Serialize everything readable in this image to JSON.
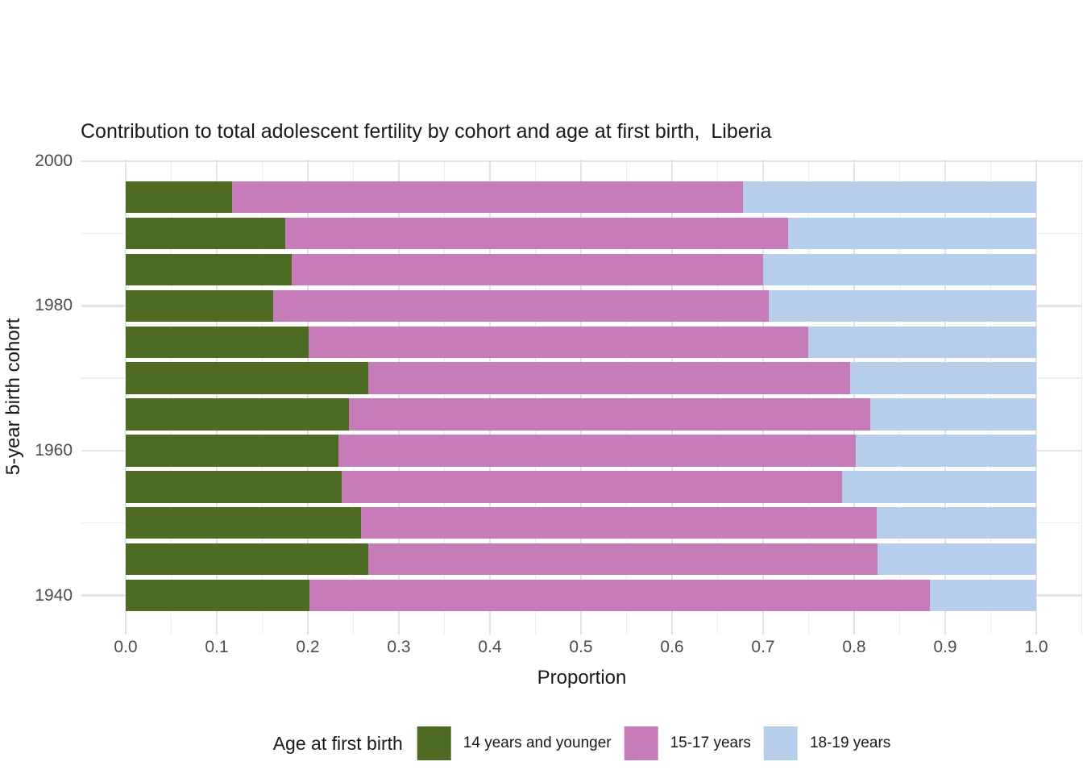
{
  "chart_data": {
    "type": "bar",
    "orientation": "horizontal-stacked",
    "title": "Contribution to total adolescent fertility by cohort and age at first birth,  Liberia",
    "xlabel": "Proportion",
    "ylabel": "5-year birth cohort",
    "xlim": [
      0.0,
      1.0
    ],
    "grid": true,
    "x_ticks": [
      {
        "value": 0.0,
        "label": "0.0"
      },
      {
        "value": 0.1,
        "label": "0.1"
      },
      {
        "value": 0.2,
        "label": "0.2"
      },
      {
        "value": 0.3,
        "label": "0.3"
      },
      {
        "value": 0.4,
        "label": "0.4"
      },
      {
        "value": 0.5,
        "label": "0.5"
      },
      {
        "value": 0.6,
        "label": "0.6"
      },
      {
        "value": 0.7,
        "label": "0.7"
      },
      {
        "value": 0.8,
        "label": "0.8"
      },
      {
        "value": 0.9,
        "label": "0.9"
      },
      {
        "value": 1.0,
        "label": "1.0"
      }
    ],
    "y_ticks": [
      {
        "value": 1940,
        "label": "1940"
      },
      {
        "value": 1960,
        "label": "1960"
      },
      {
        "value": 1980,
        "label": "1980"
      },
      {
        "value": 2000,
        "label": "2000"
      }
    ],
    "y_minor_ticks": [
      1950,
      1970,
      1990
    ],
    "categories": [
      1995,
      1990,
      1985,
      1980,
      1975,
      1970,
      1965,
      1960,
      1955,
      1950,
      1945,
      1940
    ],
    "series": [
      {
        "name": "14 years and younger",
        "color": "#4d6b23",
        "values": [
          0.117,
          0.175,
          0.182,
          0.162,
          0.201,
          0.266,
          0.245,
          0.234,
          0.237,
          0.258,
          0.266,
          0.202
        ]
      },
      {
        "name": "15-17 years",
        "color": "#c77cba",
        "values": [
          0.561,
          0.552,
          0.518,
          0.544,
          0.549,
          0.53,
          0.573,
          0.568,
          0.55,
          0.567,
          0.56,
          0.681
        ]
      },
      {
        "name": "18-19 years",
        "color": "#b6ceec",
        "values": [
          0.322,
          0.273,
          0.3,
          0.294,
          0.25,
          0.204,
          0.182,
          0.198,
          0.213,
          0.175,
          0.174,
          0.117
        ]
      }
    ],
    "legend": {
      "title": "Age at first birth",
      "position": "bottom"
    },
    "style_colors": {
      "grid_major": "#e3e3e3",
      "grid_minor": "#ededed",
      "tick_text": "#4d4d4d",
      "title_text": "#191919",
      "background": "#ffffff"
    }
  }
}
